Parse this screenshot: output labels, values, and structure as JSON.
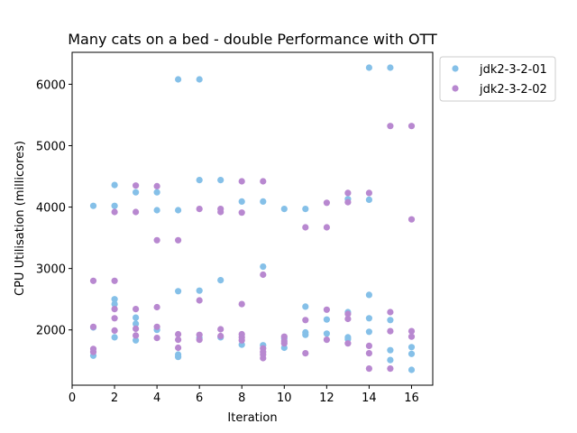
{
  "chart_data": {
    "type": "scatter",
    "title": "Many cats on a bed - double Performance with OTT",
    "xlabel": "Iteration",
    "ylabel": "CPU Utilisation (millicores)",
    "xlim": [
      0,
      17
    ],
    "ylim": [
      1100,
      6520
    ],
    "x_ticks": [
      0,
      2,
      4,
      6,
      8,
      10,
      12,
      14,
      16
    ],
    "y_ticks": [
      2000,
      3000,
      4000,
      5000,
      6000
    ],
    "grid": false,
    "legend_position": "outside-top-right",
    "series": [
      {
        "name": "jdk2-3-2-01",
        "color": "#85c0e8",
        "points": [
          [
            1,
            4020
          ],
          [
            1,
            2040
          ],
          [
            1,
            1580
          ],
          [
            2,
            4360
          ],
          [
            2,
            4020
          ],
          [
            2,
            2500
          ],
          [
            2,
            2420
          ],
          [
            2,
            1880
          ],
          [
            3,
            4240
          ],
          [
            3,
            2200
          ],
          [
            3,
            2100
          ],
          [
            3,
            1830
          ],
          [
            4,
            4240
          ],
          [
            4,
            3950
          ],
          [
            4,
            2000
          ],
          [
            5,
            6080
          ],
          [
            5,
            3950
          ],
          [
            5,
            2630
          ],
          [
            5,
            1600
          ],
          [
            5,
            1560
          ],
          [
            6,
            6080
          ],
          [
            6,
            4440
          ],
          [
            6,
            2640
          ],
          [
            6,
            1870
          ],
          [
            7,
            4440
          ],
          [
            7,
            2810
          ],
          [
            7,
            1880
          ],
          [
            8,
            4090
          ],
          [
            8,
            1760
          ],
          [
            9,
            4090
          ],
          [
            9,
            3030
          ],
          [
            9,
            1750
          ],
          [
            10,
            3970
          ],
          [
            10,
            1860
          ],
          [
            10,
            1710
          ],
          [
            11,
            3970
          ],
          [
            11,
            2380
          ],
          [
            11,
            1960
          ],
          [
            11,
            1920
          ],
          [
            12,
            2170
          ],
          [
            12,
            1940
          ],
          [
            13,
            4130
          ],
          [
            13,
            2290
          ],
          [
            13,
            1880
          ],
          [
            13,
            1850
          ],
          [
            14,
            6270
          ],
          [
            14,
            4120
          ],
          [
            14,
            2570
          ],
          [
            14,
            2190
          ],
          [
            14,
            1970
          ],
          [
            15,
            6270
          ],
          [
            15,
            2160
          ],
          [
            15,
            1670
          ],
          [
            15,
            1510
          ],
          [
            16,
            1720
          ],
          [
            16,
            1610
          ],
          [
            16,
            1350
          ]
        ]
      },
      {
        "name": "jdk2-3-2-02",
        "color": "#b888d0",
        "points": [
          [
            1,
            2800
          ],
          [
            1,
            2050
          ],
          [
            1,
            1690
          ],
          [
            1,
            1640
          ],
          [
            2,
            3920
          ],
          [
            2,
            2800
          ],
          [
            2,
            2340
          ],
          [
            2,
            2190
          ],
          [
            2,
            1990
          ],
          [
            3,
            4350
          ],
          [
            3,
            3920
          ],
          [
            3,
            2340
          ],
          [
            3,
            2020
          ],
          [
            3,
            1910
          ],
          [
            4,
            4340
          ],
          [
            4,
            3460
          ],
          [
            4,
            2370
          ],
          [
            4,
            2050
          ],
          [
            4,
            1870
          ],
          [
            5,
            3460
          ],
          [
            5,
            1930
          ],
          [
            5,
            1840
          ],
          [
            5,
            1710
          ],
          [
            6,
            3970
          ],
          [
            6,
            2480
          ],
          [
            6,
            1920
          ],
          [
            6,
            1840
          ],
          [
            7,
            3970
          ],
          [
            7,
            3920
          ],
          [
            7,
            2010
          ],
          [
            7,
            1900
          ],
          [
            8,
            4420
          ],
          [
            8,
            3910
          ],
          [
            8,
            2420
          ],
          [
            8,
            1930
          ],
          [
            8,
            1880
          ],
          [
            8,
            1830
          ],
          [
            9,
            4420
          ],
          [
            9,
            2900
          ],
          [
            9,
            1700
          ],
          [
            9,
            1640
          ],
          [
            9,
            1600
          ],
          [
            9,
            1540
          ],
          [
            10,
            1890
          ],
          [
            10,
            1820
          ],
          [
            10,
            1780
          ],
          [
            11,
            3670
          ],
          [
            11,
            2160
          ],
          [
            11,
            1620
          ],
          [
            12,
            4070
          ],
          [
            12,
            3670
          ],
          [
            12,
            2330
          ],
          [
            12,
            1840
          ],
          [
            13,
            4230
          ],
          [
            13,
            4080
          ],
          [
            13,
            2260
          ],
          [
            13,
            2180
          ],
          [
            13,
            1780
          ],
          [
            14,
            4230
          ],
          [
            14,
            1740
          ],
          [
            14,
            1620
          ],
          [
            14,
            1370
          ],
          [
            15,
            5320
          ],
          [
            15,
            2290
          ],
          [
            15,
            1980
          ],
          [
            15,
            1370
          ],
          [
            16,
            5320
          ],
          [
            16,
            3800
          ],
          [
            16,
            1980
          ],
          [
            16,
            1890
          ]
        ]
      }
    ]
  }
}
